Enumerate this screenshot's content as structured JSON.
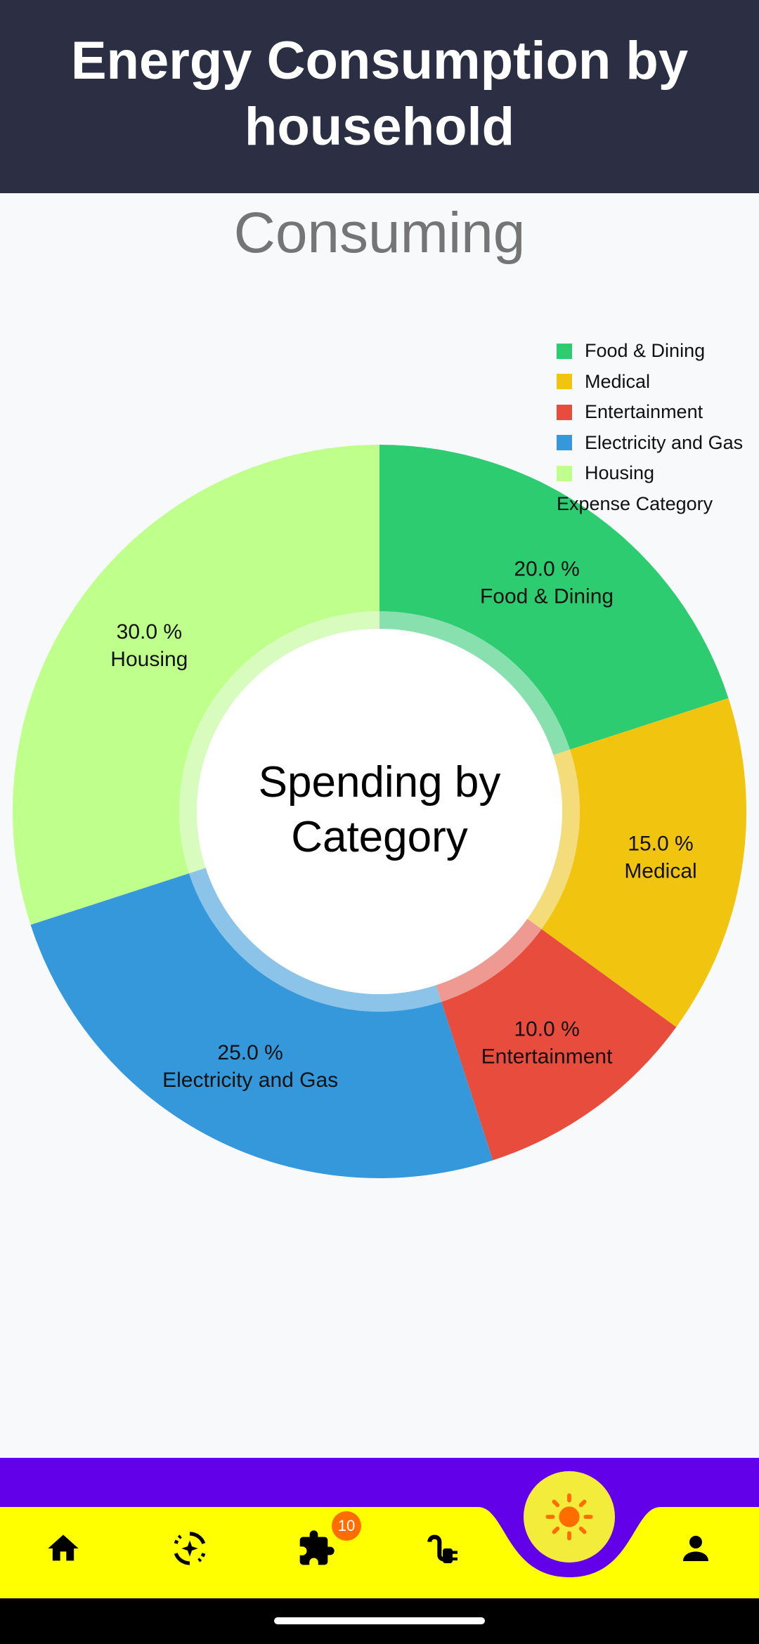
{
  "header": {
    "title": "Energy Consumption by household"
  },
  "subtitle": "Consuming",
  "chart_data": {
    "type": "pie",
    "legend_title": "Expense Category",
    "center_text": "Spending by Category",
    "legend_position": "top-right",
    "slices": [
      {
        "name": "Food & Dining",
        "value": 20.0,
        "label": "20.0 %",
        "color": "#2ecc71"
      },
      {
        "name": "Medical",
        "value": 15.0,
        "label": "15.0 %",
        "color": "#f1c40f"
      },
      {
        "name": "Entertainment",
        "value": 10.0,
        "label": "10.0 %",
        "color": "#e74c3c"
      },
      {
        "name": "Electricity and Gas",
        "value": 25.0,
        "label": "25.0 %",
        "color": "#3498db"
      },
      {
        "name": "Housing",
        "value": 30.0,
        "label": "30.0 %",
        "color": "#bfff8c"
      }
    ]
  },
  "nav": {
    "items": [
      {
        "icon": "home-icon"
      },
      {
        "icon": "sparkle-refresh-icon"
      },
      {
        "icon": "puzzle-icon",
        "badge": "10"
      },
      {
        "icon": "plug-icon"
      },
      {
        "icon": "sun-icon",
        "active": true
      },
      {
        "icon": "person-icon"
      }
    ],
    "badge_count": "10",
    "bar_color": "#ffff00",
    "accent_color": "#6200ea",
    "fab_color": "#f4ec3a",
    "sun_color": "#ff6d00"
  }
}
